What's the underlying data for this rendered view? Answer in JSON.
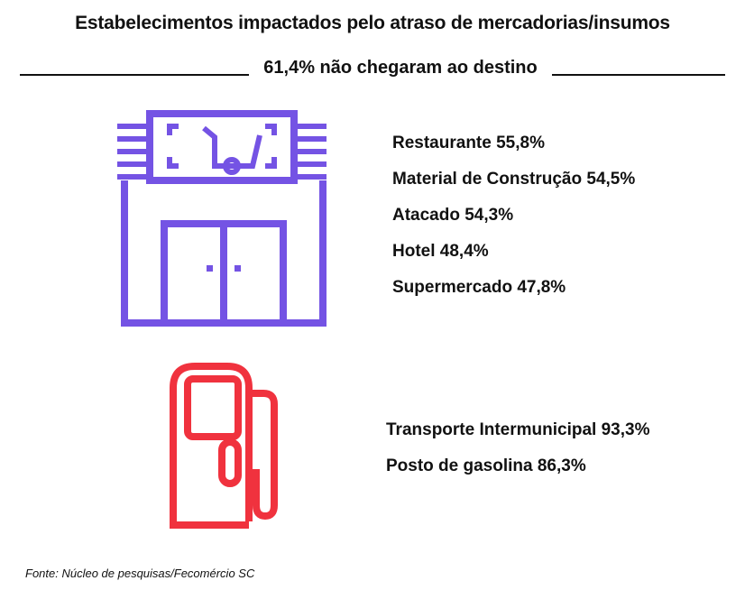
{
  "title": "Estabelecimentos impactados pelo atraso de mercadorias/insumos",
  "subtitle": "61,4% não chegaram ao destino",
  "colors": {
    "store_icon": "#7453e4",
    "fuel_icon": "#f0323e"
  },
  "icons": {
    "store": "store-icon",
    "fuel": "fuel-pump-icon"
  },
  "chart_data": {
    "type": "table",
    "title": "Estabelecimentos impactados pelo atraso de mercadorias/insumos",
    "subtitle": "61,4% não chegaram ao destino",
    "overall_value": 61.4,
    "groups": [
      {
        "icon": "store-icon",
        "items": [
          {
            "label": "Restaurante 55,8%",
            "category": "Restaurante",
            "value": 55.8
          },
          {
            "label": "Material de Construção 54,5%",
            "category": "Material de Construção",
            "value": 54.5
          },
          {
            "label": "Atacado 54,3%",
            "category": "Atacado",
            "value": 54.3
          },
          {
            "label": "Hotel 48,4%",
            "category": "Hotel",
            "value": 48.4
          },
          {
            "label": "Supermercado 47,8%",
            "category": "Supermercado",
            "value": 47.8
          }
        ]
      },
      {
        "icon": "fuel-pump-icon",
        "items": [
          {
            "label": "Transporte Intermunicipal 93,3%",
            "category": "Transporte Intermunicipal",
            "value": 93.3
          },
          {
            "label": "Posto de gasolina 86,3%",
            "category": "Posto de gasolina",
            "value": 86.3
          }
        ]
      }
    ]
  },
  "source": "Fonte: Núcleo de pesquisas/Fecomércio SC"
}
